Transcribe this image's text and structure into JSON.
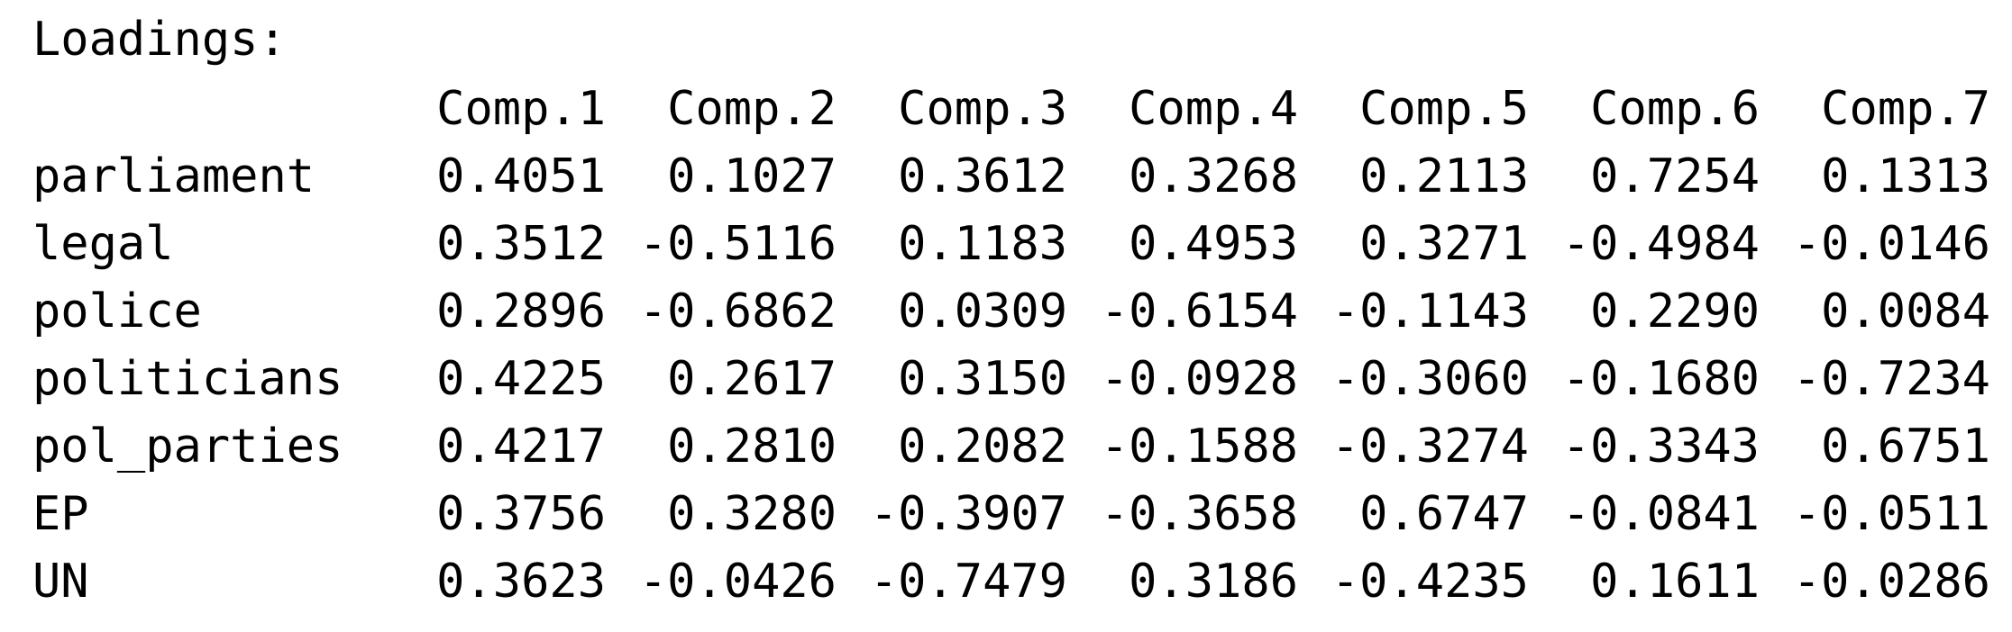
{
  "title": "Loadings:",
  "columns": [
    "Comp.1",
    "Comp.2",
    "Comp.3",
    "Comp.4",
    "Comp.5",
    "Comp.6",
    "Comp.7"
  ],
  "rows": [
    {
      "name": "parliament",
      "values": [
        "0.4051",
        "0.1027",
        "0.3612",
        "0.3268",
        "0.2113",
        "0.7254",
        "0.1313"
      ]
    },
    {
      "name": "legal",
      "values": [
        "0.3512",
        "-0.5116",
        "0.1183",
        "0.4953",
        "0.3271",
        "-0.4984",
        "-0.0146"
      ]
    },
    {
      "name": "police",
      "values": [
        "0.2896",
        "-0.6862",
        "0.0309",
        "-0.6154",
        "-0.1143",
        "0.2290",
        "0.0084"
      ]
    },
    {
      "name": "politicians",
      "values": [
        "0.4225",
        "0.2617",
        "0.3150",
        "-0.0928",
        "-0.3060",
        "-0.1680",
        "-0.7234"
      ]
    },
    {
      "name": "pol_parties",
      "values": [
        "0.4217",
        "0.2810",
        "0.2082",
        "-0.1588",
        "-0.3274",
        "-0.3343",
        "0.6751"
      ]
    },
    {
      "name": "EP",
      "values": [
        "0.3756",
        "0.3280",
        "-0.3907",
        "-0.3658",
        "0.6747",
        "-0.0841",
        "-0.0511"
      ]
    },
    {
      "name": "UN",
      "values": [
        "0.3623",
        "-0.0426",
        "-0.7479",
        "0.3186",
        "-0.4235",
        "0.1611",
        "-0.0286"
      ]
    }
  ]
}
